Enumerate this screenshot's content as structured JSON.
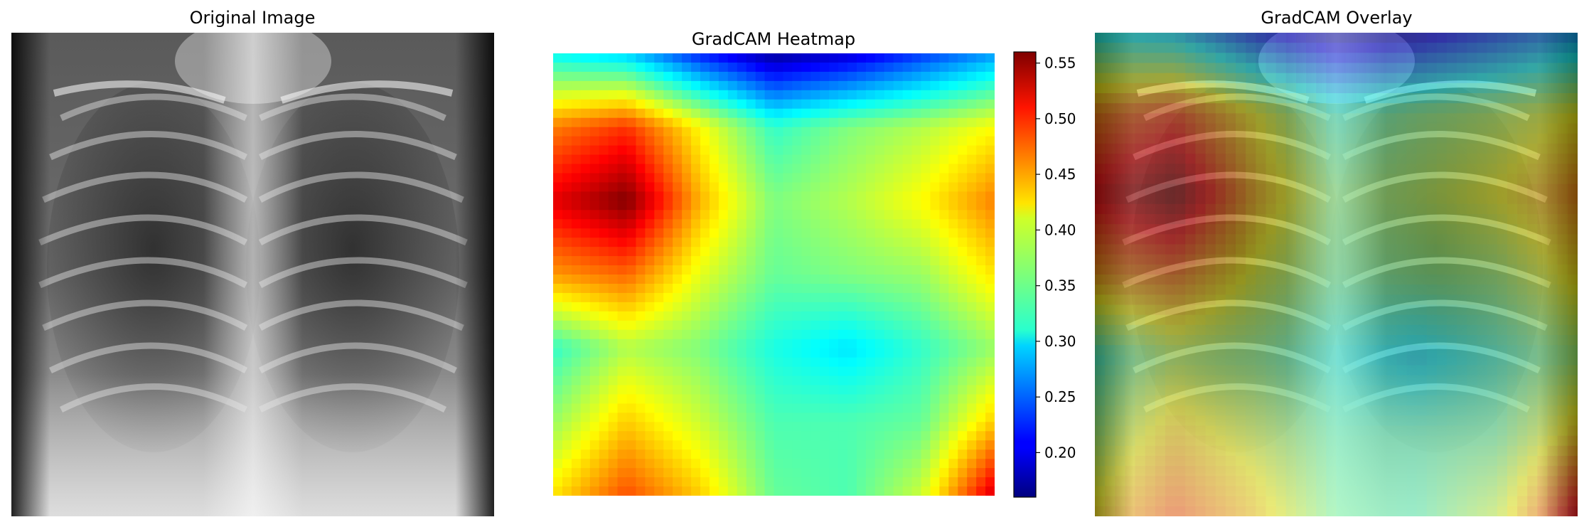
{
  "panels": [
    {
      "title": "Original Image"
    },
    {
      "title": "GradCAM Heatmap"
    },
    {
      "title": "GradCAM Overlay"
    }
  ],
  "colorbar": {
    "min": 0.16,
    "max": 0.56,
    "ticks": [
      "0.20",
      "0.25",
      "0.30",
      "0.35",
      "0.40",
      "0.45",
      "0.50",
      "0.55"
    ],
    "colormap": "jet"
  },
  "chart_data": {
    "type": "heatmap",
    "title": "GradCAM Heatmap",
    "colormap": "jet",
    "value_range": [
      0.16,
      0.56
    ],
    "grid_rows": 7,
    "grid_cols": 7,
    "values": [
      [
        0.31,
        0.29,
        0.22,
        0.17,
        0.19,
        0.23,
        0.27
      ],
      [
        0.46,
        0.49,
        0.41,
        0.33,
        0.36,
        0.38,
        0.41
      ],
      [
        0.52,
        0.56,
        0.44,
        0.36,
        0.38,
        0.41,
        0.46
      ],
      [
        0.45,
        0.47,
        0.4,
        0.35,
        0.36,
        0.37,
        0.42
      ],
      [
        0.33,
        0.38,
        0.36,
        0.32,
        0.3,
        0.33,
        0.37
      ],
      [
        0.37,
        0.43,
        0.39,
        0.34,
        0.34,
        0.35,
        0.43
      ],
      [
        0.42,
        0.48,
        0.43,
        0.35,
        0.34,
        0.39,
        0.53
      ]
    ]
  }
}
